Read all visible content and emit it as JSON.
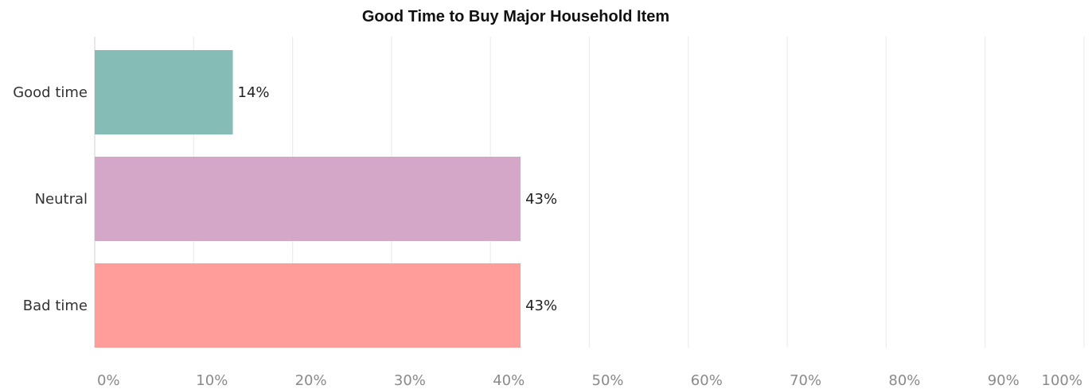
{
  "chart_data": {
    "type": "bar",
    "orientation": "horizontal",
    "title": "Good Time to Buy Major Household Item",
    "xlabel": "",
    "ylabel": "",
    "categories": [
      "Good time",
      "Neutral",
      "Bad time"
    ],
    "values": [
      14,
      43,
      43
    ],
    "value_labels": [
      "14%",
      "43%",
      "43%"
    ],
    "xlim": [
      0,
      100
    ],
    "xticks": [
      "0%",
      "10%",
      "20%",
      "30%",
      "40%",
      "50%",
      "60%",
      "70%",
      "80%",
      "90%",
      "100%"
    ],
    "colors": [
      "#86bcb6",
      "#d4a6c8",
      "#ff9d9a"
    ],
    "grid": true,
    "legend": "none"
  }
}
